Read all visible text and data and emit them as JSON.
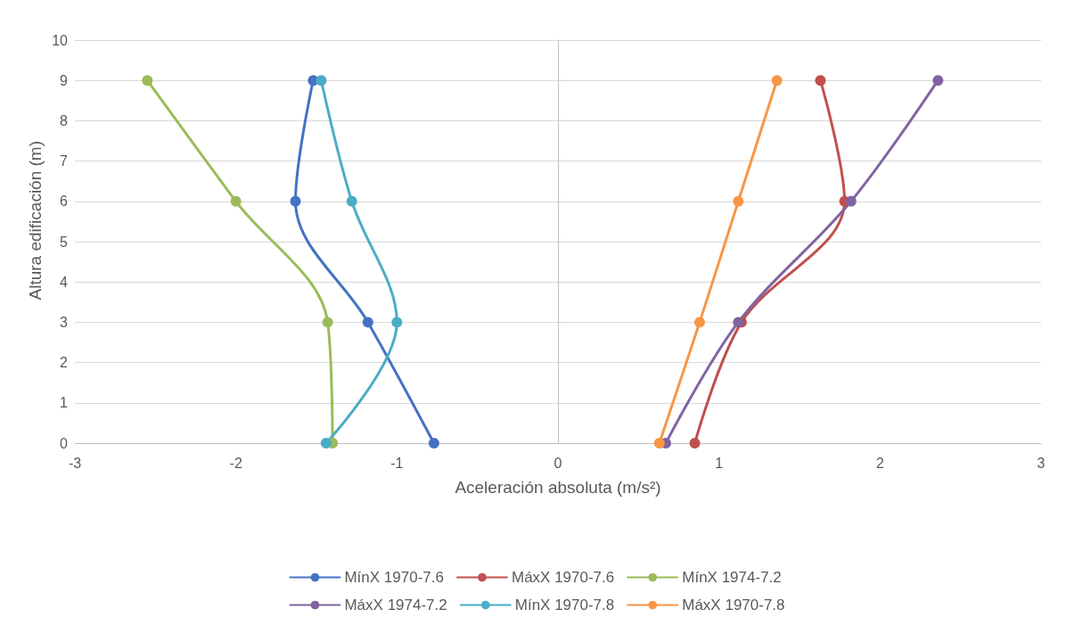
{
  "chart_data": {
    "type": "line",
    "xlabel": "Aceleración absoluta (m/s²)",
    "ylabel": "Altura edificación (m)",
    "xlim": [
      -3,
      3
    ],
    "xticks": [
      -3,
      -2,
      -1,
      0,
      1,
      2,
      3
    ],
    "ylim": [
      0,
      10
    ],
    "yticks": [
      0,
      1,
      2,
      3,
      4,
      5,
      6,
      7,
      8,
      9,
      10
    ],
    "grid": "y",
    "legend": "bottom",
    "marker": "circle",
    "line_style": "solid",
    "series": [
      {
        "name": "MínX 1970-7.6",
        "color": "#4472c4",
        "x": [
          -0.77,
          -1.18,
          -1.63,
          -1.52
        ],
        "values": [
          0,
          3,
          6,
          9
        ]
      },
      {
        "name": "MáxX 1970-7.6",
        "color": "#c0504d",
        "x": [
          0.85,
          1.14,
          1.78,
          1.63
        ],
        "values": [
          0,
          3,
          6,
          9
        ]
      },
      {
        "name": "MínX 1974-7.2",
        "color": "#9bbb59",
        "x": [
          -1.4,
          -1.43,
          -2.0,
          -2.55
        ],
        "values": [
          0,
          3,
          6,
          9
        ]
      },
      {
        "name": "MáxX 1974-7.2",
        "color": "#8064a2",
        "x": [
          0.67,
          1.12,
          1.82,
          2.36
        ],
        "values": [
          0,
          3,
          6,
          9
        ]
      },
      {
        "name": "MínX 1970-7.8",
        "color": "#4bacc6",
        "x": [
          -1.44,
          -1.0,
          -1.28,
          -1.47
        ],
        "values": [
          0,
          3,
          6,
          9
        ]
      },
      {
        "name": "MáxX 1970-7.8",
        "color": "#f79646",
        "x": [
          0.63,
          0.88,
          1.12,
          1.36
        ],
        "values": [
          0,
          3,
          6,
          9
        ]
      }
    ]
  }
}
